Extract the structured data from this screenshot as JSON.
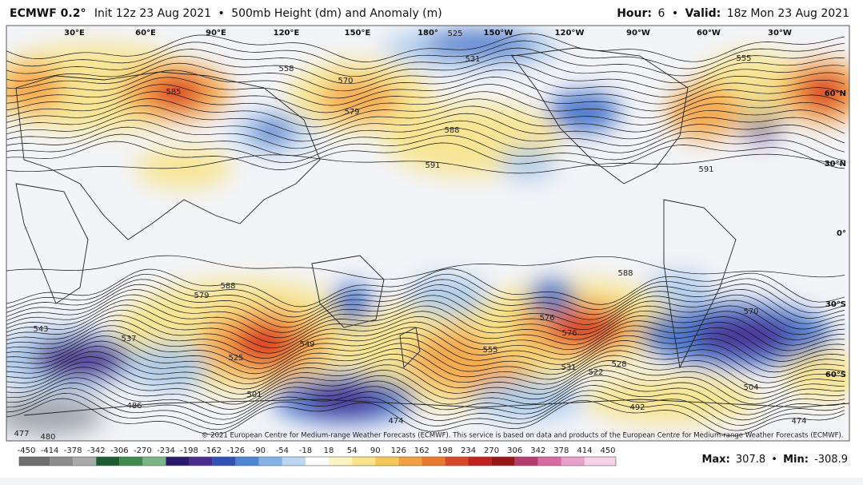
{
  "header": {
    "model": "ECMWF 0.2°",
    "init": "Init 12z 23 Aug 2021",
    "product": "500mb Height (dm) and Anomaly (m)",
    "hour_label": "Hour:",
    "hour": "6",
    "valid_label": "Valid:",
    "valid": "18z Mon 23 Aug 2021"
  },
  "longitude_labels": [
    "30°E",
    "60°E",
    "90°E",
    "120°E",
    "150°E",
    "180°",
    "150°W",
    "120°W",
    "90°W",
    "60°W",
    "30°W"
  ],
  "latitude_labels": [
    "60°N",
    "30°N",
    "0°",
    "30°S",
    "60°S"
  ],
  "contour_labels": [
    "585",
    "570",
    "579",
    "588",
    "591",
    "531",
    "525",
    "558",
    "555",
    "591",
    "588",
    "579",
    "576",
    "555",
    "576",
    "588",
    "525",
    "549",
    "537",
    "543",
    "486",
    "501",
    "474",
    "492",
    "504",
    "474",
    "477",
    "480",
    "570",
    "528",
    "522",
    "531"
  ],
  "copyright": "© 2021 European Centre for Medium-range Weather Forecasts (ECMWF). This service is based on data and products of the European Centre for Medium-range Weather Forecasts (ECMWF).",
  "colorbar_ticks": [
    "-450",
    "-414",
    "-378",
    "-342",
    "-306",
    "-270",
    "-234",
    "-198",
    "-162",
    "-126",
    "-90",
    "-54",
    "-18",
    "18",
    "54",
    "90",
    "126",
    "162",
    "198",
    "234",
    "270",
    "306",
    "342",
    "378",
    "414",
    "450"
  ],
  "stats": {
    "max_label": "Max:",
    "max": "307.8",
    "min_label": "Min:",
    "min": "-308.9"
  }
}
